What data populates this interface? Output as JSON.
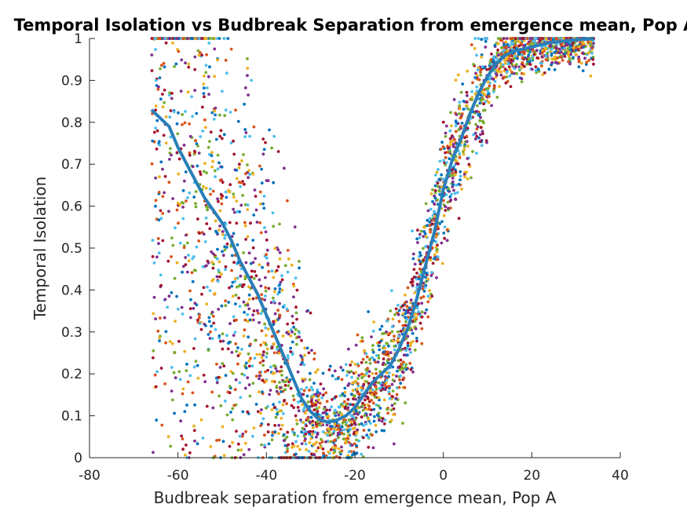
{
  "chart_data": {
    "type": "scatter",
    "title": "Temporal Isolation vs Budbreak Separation from emergence mean, Pop A",
    "xlabel": "Budbreak separation from emergence mean, Pop A",
    "ylabel": "Temporal Isolation",
    "xlim": [
      -80,
      40
    ],
    "ylim": [
      0,
      1
    ],
    "xticks": [
      -80,
      -60,
      -40,
      -20,
      0,
      20,
      40
    ],
    "yticks": [
      0,
      0.1,
      0.2,
      0.3,
      0.4,
      0.5,
      0.6,
      0.7,
      0.8,
      0.9,
      1
    ],
    "xtick_labels": [
      "-80",
      "-60",
      "-40",
      "-20",
      "0",
      "20",
      "40"
    ],
    "ytick_labels": [
      "0",
      "0.1",
      "0.2",
      "0.3",
      "0.4",
      "0.5",
      "0.6",
      "0.7",
      "0.8",
      "0.9",
      "1"
    ],
    "grid": false,
    "legend": "none",
    "colors": [
      "#0072BD",
      "#D95319",
      "#EDB120",
      "#7E2F8E",
      "#77AC30",
      "#4DBEEE",
      "#A2142F"
    ],
    "series": [
      {
        "values": [
          [
            -66,
            0.83
          ],
          [
            -64,
            0.81
          ],
          [
            -62,
            0.79
          ],
          [
            -60,
            0.74
          ],
          [
            -58,
            0.7
          ],
          [
            -56,
            0.66
          ],
          [
            -54,
            0.62
          ],
          [
            -52,
            0.59
          ],
          [
            -50,
            0.56
          ],
          [
            -48,
            0.52
          ],
          [
            -46,
            0.47
          ],
          [
            -44,
            0.43
          ],
          [
            -42,
            0.39
          ],
          [
            -40,
            0.34
          ],
          [
            -38,
            0.29
          ],
          [
            -36,
            0.24
          ],
          [
            -34,
            0.19
          ],
          [
            -32,
            0.14
          ],
          [
            -30,
            0.11
          ],
          [
            -28,
            0.09
          ],
          [
            -26,
            0.085
          ],
          [
            -24,
            0.09
          ],
          [
            -22,
            0.1
          ],
          [
            -20,
            0.12
          ],
          [
            -18,
            0.15
          ],
          [
            -16,
            0.18
          ],
          [
            -14,
            0.2
          ],
          [
            -12,
            0.22
          ],
          [
            -10,
            0.26
          ],
          [
            -8,
            0.31
          ],
          [
            -6,
            0.38
          ],
          [
            -4,
            0.46
          ],
          [
            -2,
            0.54
          ],
          [
            0,
            0.64
          ],
          [
            2,
            0.71
          ],
          [
            4,
            0.76
          ],
          [
            6,
            0.82
          ],
          [
            8,
            0.87
          ],
          [
            10,
            0.91
          ],
          [
            12,
            0.94
          ],
          [
            14,
            0.96
          ],
          [
            16,
            0.97
          ],
          [
            18,
            0.975
          ],
          [
            20,
            0.98
          ],
          [
            22,
            0.985
          ],
          [
            24,
            0.99
          ],
          [
            26,
            0.992
          ],
          [
            28,
            0.995
          ],
          [
            30,
            0.997
          ],
          [
            32,
            0.998
          ],
          [
            34,
            0.999
          ]
        ]
      }
    ]
  }
}
